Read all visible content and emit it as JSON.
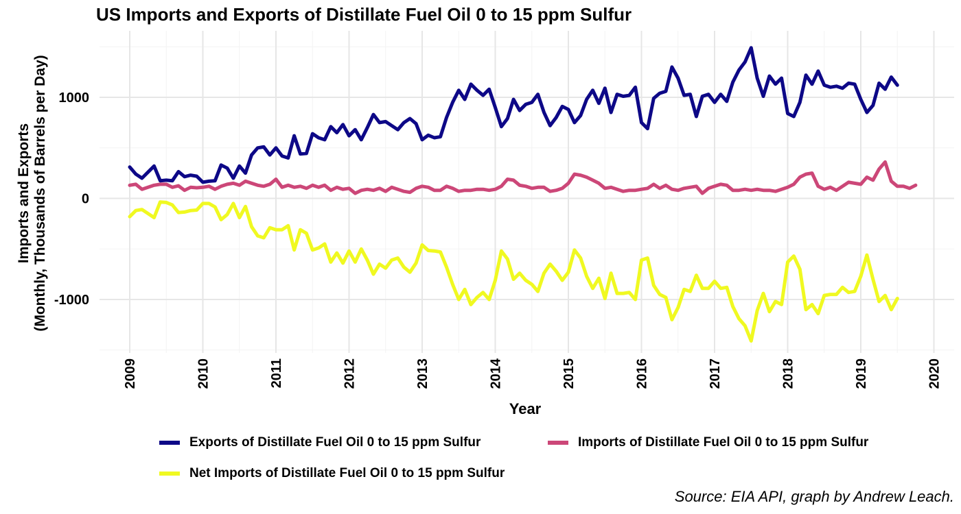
{
  "chart_data": {
    "type": "line",
    "title": "US Imports and Exports of Distillate Fuel Oil 0 to 15 ppm Sulfur",
    "xlabel": "Year",
    "ylabel_line1": "Imports and Exports",
    "ylabel_line2": "(Monthly, Thousands of Barrels per Day)",
    "source": "Source: EIA API, graph by Andrew Leach.",
    "xlim": [
      2009,
      2020
    ],
    "ylim": [
      -1550,
      1600
    ],
    "x_ticks": [
      "2009",
      "2010",
      "2011",
      "2012",
      "2013",
      "2014",
      "2015",
      "2016",
      "2017",
      "2018",
      "2019",
      "2020"
    ],
    "y_ticks": [
      -1000,
      0,
      1000
    ],
    "y_tick_labels": [
      "-1000",
      "0",
      "1000"
    ],
    "grid": true,
    "legend_position": "bottom",
    "x_start": "2009-01",
    "series": [
      {
        "name": "Exports of Distillate Fuel Oil 0 to 15 ppm Sulfur",
        "color": "#0d0887",
        "values": [
          310,
          240,
          200,
          260,
          320,
          175,
          180,
          175,
          265,
          215,
          230,
          220,
          160,
          170,
          175,
          330,
          300,
          200,
          320,
          250,
          430,
          500,
          510,
          430,
          500,
          420,
          400,
          620,
          440,
          445,
          640,
          600,
          580,
          710,
          650,
          730,
          620,
          680,
          580,
          700,
          830,
          750,
          760,
          720,
          680,
          750,
          790,
          740,
          580,
          625,
          600,
          610,
          800,
          950,
          1070,
          980,
          1130,
          1070,
          1020,
          1080,
          900,
          710,
          790,
          980,
          870,
          930,
          950,
          1030,
          850,
          720,
          800,
          910,
          880,
          750,
          820,
          980,
          1070,
          940,
          1090,
          850,
          1030,
          1010,
          1020,
          1100,
          750,
          690,
          990,
          1040,
          1060,
          1300,
          1190,
          1020,
          1030,
          810,
          1010,
          1030,
          950,
          1030,
          960,
          1150,
          1270,
          1350,
          1490,
          1190,
          1010,
          1210,
          1130,
          1190,
          840,
          810,
          950,
          1220,
          1130,
          1260,
          1120,
          1100,
          1110,
          1090,
          1140,
          1130,
          980,
          850,
          920,
          1140,
          1080,
          1200,
          1120
        ]
      },
      {
        "name": "Imports of Distillate Fuel Oil 0 to 15 ppm Sulfur",
        "color": "#cc4778",
        "values": [
          130,
          140,
          90,
          110,
          130,
          140,
          140,
          110,
          125,
          80,
          110,
          105,
          110,
          120,
          90,
          120,
          140,
          150,
          130,
          170,
          150,
          130,
          120,
          140,
          190,
          110,
          130,
          110,
          120,
          100,
          130,
          110,
          130,
          80,
          110,
          90,
          100,
          50,
          80,
          90,
          80,
          100,
          70,
          110,
          90,
          70,
          60,
          100,
          120,
          110,
          80,
          80,
          120,
          100,
          70,
          80,
          80,
          90,
          90,
          80,
          90,
          120,
          190,
          180,
          130,
          120,
          100,
          110,
          110,
          70,
          80,
          100,
          150,
          240,
          230,
          210,
          180,
          150,
          100,
          110,
          90,
          70,
          80,
          80,
          90,
          100,
          140,
          100,
          130,
          90,
          80,
          100,
          110,
          120,
          50,
          100,
          120,
          140,
          130,
          80,
          80,
          90,
          80,
          90,
          80,
          80,
          70,
          90,
          110,
          140,
          210,
          240,
          250,
          120,
          90,
          110,
          80,
          120,
          160,
          150,
          140,
          210,
          180,
          290,
          360,
          170,
          120,
          120,
          100,
          130
        ]
      },
      {
        "name": "Net Imports of Distillate Fuel Oil 0 to 15 ppm Sulfur",
        "color": "#f0f921",
        "values": [
          -180,
          -120,
          -110,
          -150,
          -190,
          -35,
          -40,
          -65,
          -140,
          -135,
          -120,
          -115,
          -50,
          -50,
          -85,
          -210,
          -160,
          -50,
          -190,
          -80,
          -280,
          -370,
          -390,
          -290,
          -310,
          -310,
          -270,
          -510,
          -310,
          -345,
          -510,
          -490,
          -450,
          -630,
          -540,
          -640,
          -520,
          -630,
          -500,
          -610,
          -750,
          -650,
          -690,
          -610,
          -590,
          -680,
          -730,
          -640,
          -460,
          -515,
          -520,
          -530,
          -680,
          -850,
          -1000,
          -900,
          -1050,
          -980,
          -930,
          -1000,
          -810,
          -520,
          -600,
          -800,
          -740,
          -810,
          -850,
          -920,
          -740,
          -650,
          -720,
          -810,
          -730,
          -510,
          -590,
          -770,
          -890,
          -790,
          -990,
          -740,
          -940,
          -940,
          -930,
          -1000,
          -610,
          -590,
          -860,
          -950,
          -980,
          -1200,
          -1080,
          -900,
          -920,
          -760,
          -890,
          -890,
          -820,
          -890,
          -880,
          -1070,
          -1190,
          -1260,
          -1410,
          -1110,
          -940,
          -1120,
          -1020,
          -1050,
          -630,
          -570,
          -700,
          -1100,
          -1050,
          -1140,
          -960,
          -950,
          -950,
          -880,
          -930,
          -920,
          -770,
          -560,
          -800,
          -1020,
          -960,
          -1100,
          -990
        ]
      }
    ]
  }
}
